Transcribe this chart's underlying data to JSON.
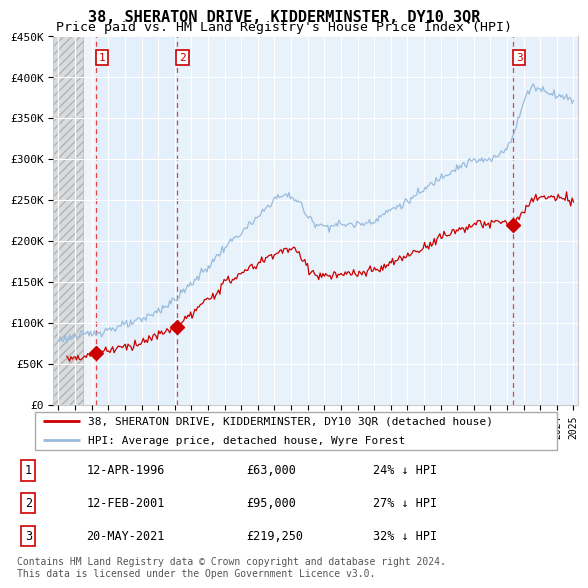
{
  "title": "38, SHERATON DRIVE, KIDDERMINSTER, DY10 3QR",
  "subtitle": "Price paid vs. HM Land Registry's House Price Index (HPI)",
  "ylim": [
    0,
    450000
  ],
  "yticks": [
    0,
    50000,
    100000,
    150000,
    200000,
    250000,
    300000,
    350000,
    400000,
    450000
  ],
  "ytick_labels": [
    "£0",
    "£50K",
    "£100K",
    "£150K",
    "£200K",
    "£250K",
    "£300K",
    "£350K",
    "£400K",
    "£450K"
  ],
  "xlim_start": 1993.7,
  "xlim_end": 2025.3,
  "hatch_end": 1995.5,
  "price_paid_color": "#cc0000",
  "hpi_color": "#99bbdd",
  "vline_color": "#dd4444",
  "sale_points": [
    {
      "year": 1996.28,
      "price": 63000,
      "label": "1"
    },
    {
      "year": 2001.12,
      "price": 95000,
      "label": "2"
    },
    {
      "year": 2021.38,
      "price": 219250,
      "label": "3"
    }
  ],
  "legend_line1": "38, SHERATON DRIVE, KIDDERMINSTER, DY10 3QR (detached house)",
  "legend_line2": "HPI: Average price, detached house, Wyre Forest",
  "table_data": [
    [
      "1",
      "12-APR-1996",
      "£63,000",
      "24% ↓ HPI"
    ],
    [
      "2",
      "12-FEB-2001",
      "£95,000",
      "27% ↓ HPI"
    ],
    [
      "3",
      "20-MAY-2021",
      "£219,250",
      "32% ↓ HPI"
    ]
  ],
  "footnote": "Contains HM Land Registry data © Crown copyright and database right 2024.\nThis data is licensed under the Open Government Licence v3.0.",
  "title_fontsize": 11,
  "tick_fontsize": 8
}
